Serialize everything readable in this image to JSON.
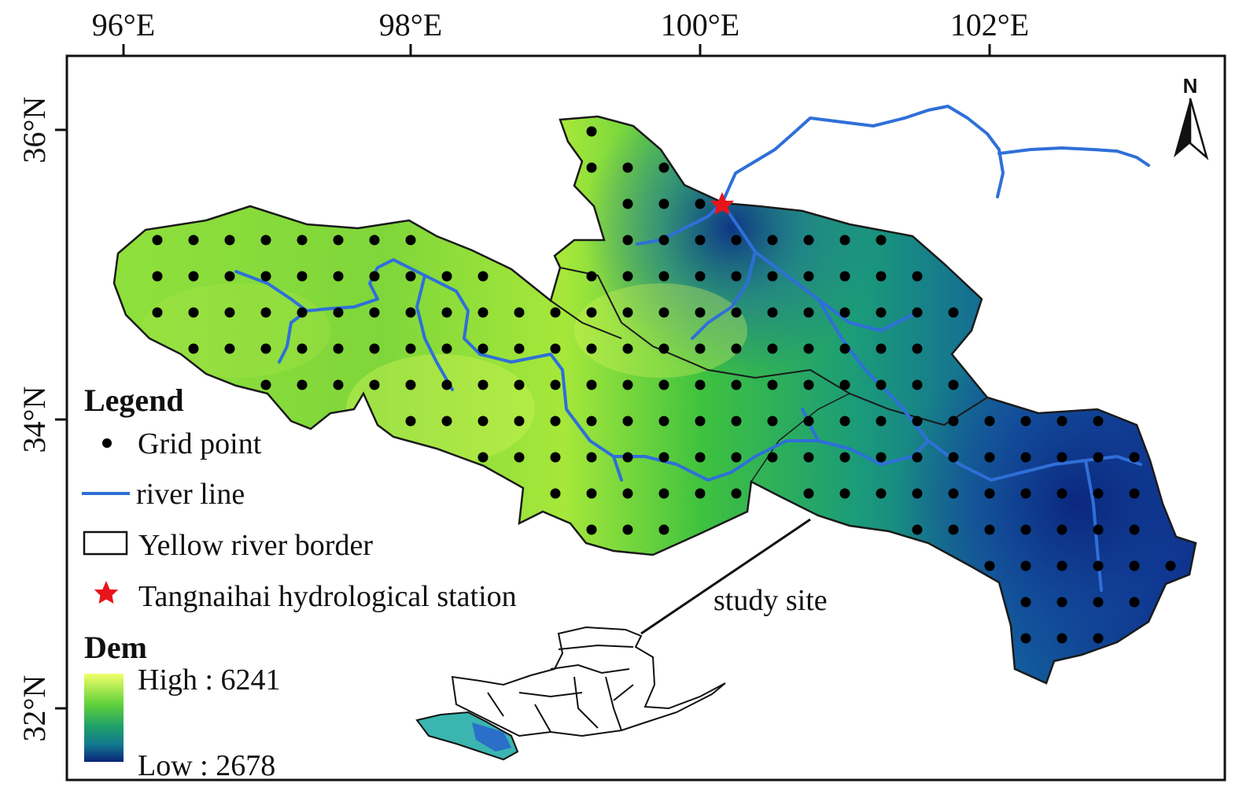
{
  "axes": {
    "longitude_ticks": [
      "96°E",
      "98°E",
      "100°E",
      "102°E"
    ],
    "latitude_ticks": [
      "36°N",
      "34°N",
      "32°N"
    ]
  },
  "north_arrow": {
    "label": "N",
    "icon": "north-arrow-icon"
  },
  "legend": {
    "title": "Legend",
    "items": [
      {
        "label": "Grid point",
        "icon": "grid-point-icon"
      },
      {
        "label": "river line",
        "icon": "river-line-icon"
      },
      {
        "label": "Yellow river border",
        "icon": "border-box-icon"
      },
      {
        "label": "Tangnaihai hydrological station",
        "icon": "star-icon"
      }
    ]
  },
  "dem": {
    "title": "Dem",
    "high_label": "High : 6241",
    "low_label": "Low : 2678",
    "colors": [
      "#f2ff6a",
      "#8fe03c",
      "#35c03a",
      "#1fa06a",
      "#137a8f",
      "#103d9a",
      "#0a237a"
    ]
  },
  "inset": {
    "label": "study site"
  },
  "colors": {
    "river": "#2f6fd8",
    "station": "#e8141c",
    "grid_point": "#000000",
    "border": "#1a1a1a"
  }
}
